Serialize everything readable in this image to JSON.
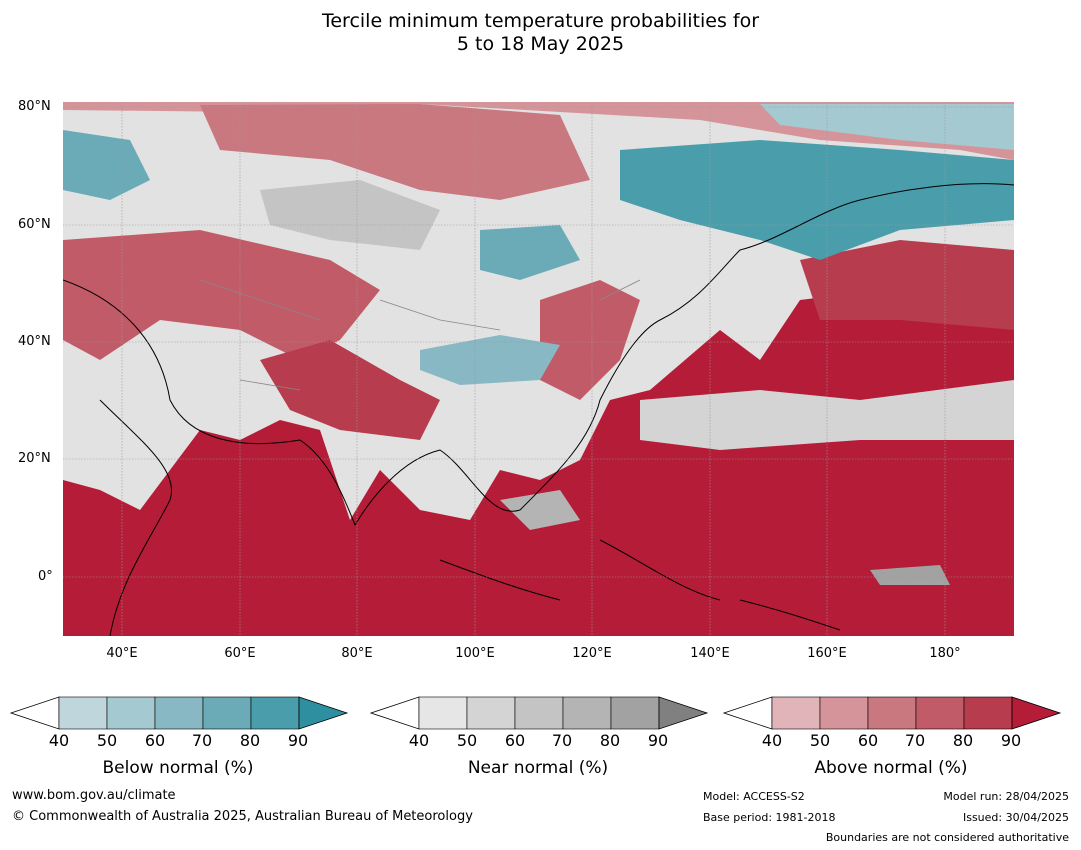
{
  "title_line1": "Tercile minimum temperature probabilities for",
  "title_line2": "5 to 18 May 2025",
  "map": {
    "lat_labels": [
      "80°N",
      "60°N",
      "40°N",
      "20°N",
      "0°"
    ],
    "lon_labels": [
      "40°E",
      "60°E",
      "80°E",
      "100°E",
      "120°E",
      "140°E",
      "160°E",
      "180°"
    ],
    "colors": {
      "ocean_above": "#b41c37",
      "land_fill": "#e8e8e8",
      "coast": "#000000",
      "border": "#888888",
      "grid": "#9a9a9a"
    }
  },
  "legends": [
    {
      "title": "Below normal (%)",
      "ticks": [
        "40",
        "50",
        "60",
        "70",
        "80",
        "90"
      ],
      "colors": [
        "#c0d6dd",
        "#a5c9d0",
        "#88b8c3",
        "#6aabb7",
        "#4a9eab",
        "#2e8fa0"
      ]
    },
    {
      "title": "Near normal (%)",
      "ticks": [
        "40",
        "50",
        "60",
        "70",
        "80",
        "90"
      ],
      "colors": [
        "#e6e6e6",
        "#d4d4d4",
        "#c4c4c4",
        "#b4b4b4",
        "#a2a2a2",
        "#808080"
      ]
    },
    {
      "title": "Above normal (%)",
      "ticks": [
        "40",
        "50",
        "60",
        "70",
        "80",
        "90"
      ],
      "colors": [
        "#e0b4b9",
        "#d59499",
        "#c97880",
        "#c25b68",
        "#b73c4d",
        "#b41c37"
      ]
    }
  ],
  "footer": {
    "website": "www.bom.gov.au/climate",
    "copyright": "© Commonwealth of Australia 2025, Australian Bureau of Meteorology",
    "model": "Model: ACCESS-S2",
    "base_period": "Base period: 1981-2018",
    "model_run": "Model run: 28/04/2025",
    "issued": "Issued: 30/04/2025",
    "disclaimer": "Boundaries are not considered authoritative"
  }
}
